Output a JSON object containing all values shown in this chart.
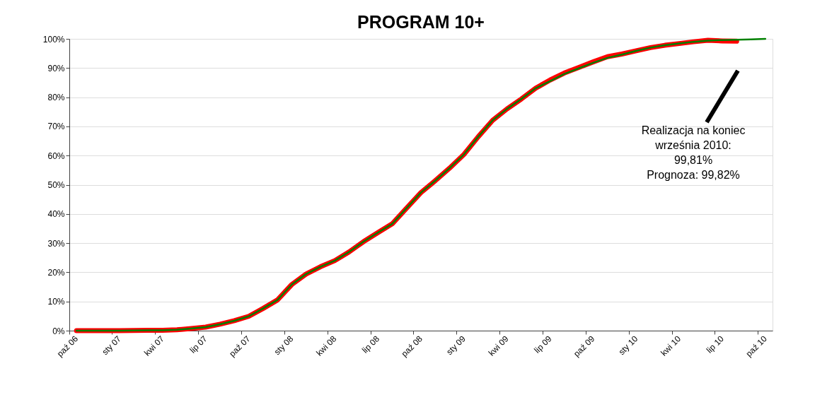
{
  "chart_data": {
    "type": "line",
    "title": "PROGRAM 10+",
    "categories": [
      "paź 06",
      null,
      null,
      "sty 07",
      null,
      null,
      "kwi 07",
      null,
      null,
      "lip 07",
      null,
      null,
      "paź 07",
      null,
      null,
      "sty 08",
      null,
      null,
      "kwi 08",
      null,
      null,
      "lip 08",
      null,
      null,
      "paź 08",
      null,
      null,
      "sty 09",
      null,
      null,
      "kwi 09",
      null,
      null,
      "lip 09",
      null,
      null,
      "paź 09",
      null,
      null,
      "sty 10",
      null,
      null,
      "kwi 10",
      null,
      null,
      "lip 10",
      null,
      null,
      "paź 10"
    ],
    "series": [
      {
        "color": "#ff0000",
        "values": [
          0,
          0,
          0,
          0,
          0.05,
          0.1,
          0.15,
          0.3,
          0.7,
          1.2,
          2.2,
          3.4,
          4.9,
          7.6,
          10.5,
          15.8,
          19.4,
          21.9,
          24.0,
          27.0,
          30.5,
          33.6,
          36.6,
          42.0,
          47.3,
          51.4,
          55.7,
          60.4,
          66.5,
          72.1,
          76.0,
          79.4,
          83.1,
          85.9,
          88.3,
          90.2,
          92.1,
          93.9,
          94.8,
          95.9,
          97.0,
          97.8,
          98.4,
          99.0,
          99.5,
          99.3,
          99.2,
          null,
          null
        ]
      },
      {
        "color": "#008000",
        "values": [
          0,
          0,
          0,
          0,
          0.05,
          0.1,
          0.15,
          0.3,
          0.7,
          1.2,
          2.2,
          3.4,
          4.9,
          7.6,
          10.5,
          15.8,
          19.4,
          21.9,
          24.0,
          27.0,
          30.5,
          33.6,
          36.6,
          42.0,
          47.3,
          51.4,
          55.7,
          60.4,
          66.5,
          72.1,
          76.0,
          79.4,
          83.1,
          85.5,
          88.0,
          89.9,
          91.8,
          93.5,
          94.6,
          95.9,
          97.0,
          97.8,
          98.4,
          99.0,
          99.4,
          99.6,
          99.7,
          99.8,
          100
        ]
      }
    ],
    "ylim": [
      0,
      100
    ],
    "yticks": [
      {
        "value": 0,
        "label": "0%"
      },
      {
        "value": 10,
        "label": "10%"
      },
      {
        "value": 20,
        "label": "20%"
      },
      {
        "value": 30,
        "label": "30%"
      },
      {
        "value": 40,
        "label": "40%"
      },
      {
        "value": 50,
        "label": "50%"
      },
      {
        "value": 60,
        "label": "60%"
      },
      {
        "value": 70,
        "label": "70%"
      },
      {
        "value": 80,
        "label": "80%"
      },
      {
        "value": 90,
        "label": "90%"
      },
      {
        "value": 100,
        "label": "100%"
      }
    ],
    "grid": "y",
    "marker": "none",
    "line_style": "solid",
    "annotations": [
      "Realizacja na koniec\nwrześnia 2010:\n99,81%\nPrognoza:  99,82%"
    ]
  }
}
